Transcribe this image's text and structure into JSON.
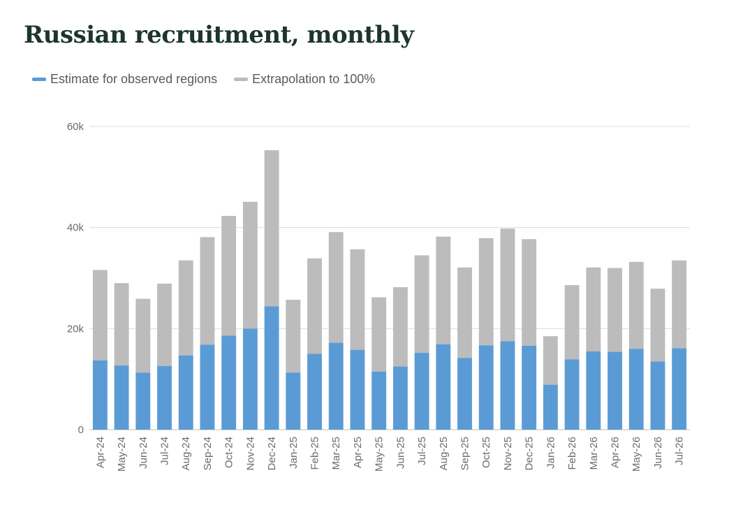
{
  "title": "Russian recruitment, monthly",
  "legend": [
    {
      "label": "Estimate for observed regions",
      "color": "#5b9bd5"
    },
    {
      "label": "Extrapolation to 100%",
      "color": "#bcbcbc"
    }
  ],
  "colors": {
    "observed": "#5b9bd5",
    "extrapolated": "#bcbcbc",
    "grid": "#dcdcdc"
  },
  "chart_data": {
    "type": "bar",
    "stacked": true,
    "categories": [
      "Apr-24",
      "May-24",
      "Jun-24",
      "Jul-24",
      "Aug-24",
      "Sep-24",
      "Oct-24",
      "Nov-24",
      "Dec-24",
      "Jan-25",
      "Feb-25",
      "Mar-25",
      "Apr-25",
      "May-25",
      "Jun-25",
      "Jul-25",
      "Aug-25",
      "Sep-25",
      "Oct-25",
      "Nov-25",
      "Dec-25",
      "Jan-26",
      "Feb-26",
      "Mar-26",
      "Apr-26",
      "May-26",
      "Jun-26",
      "Jul-26"
    ],
    "series": [
      {
        "name": "Estimate for observed regions",
        "values": [
          13700,
          12700,
          11300,
          12600,
          14700,
          16800,
          18600,
          20000,
          24400,
          11300,
          15000,
          17200,
          15800,
          11500,
          12500,
          15200,
          16900,
          14200,
          16700,
          17500,
          16600,
          8900,
          13900,
          15500,
          15400,
          16000,
          13500,
          16100
        ]
      },
      {
        "name": "Extrapolation to 100%",
        "values": [
          17900,
          16300,
          14600,
          16300,
          18800,
          21300,
          23700,
          25100,
          30900,
          14400,
          18900,
          21900,
          19900,
          14700,
          15700,
          19300,
          21300,
          17900,
          21200,
          22300,
          21100,
          9600,
          14700,
          16600,
          16600,
          17200,
          14400,
          17400
        ]
      }
    ],
    "y_ticks": [
      0,
      20000,
      40000,
      60000
    ],
    "y_tick_labels": [
      "0",
      "20k",
      "40k",
      "60k"
    ],
    "ylim": [
      0,
      60000
    ],
    "xlabel": "",
    "ylabel": "",
    "grid": true,
    "legend_position": "top-left"
  }
}
